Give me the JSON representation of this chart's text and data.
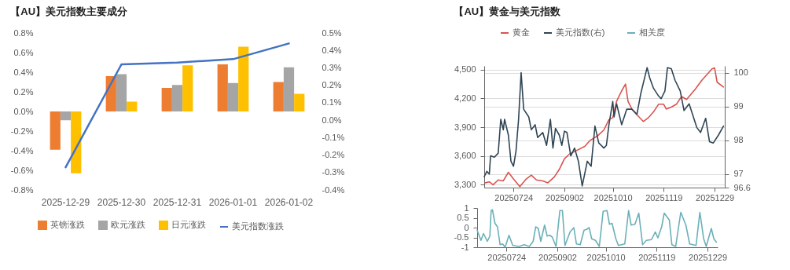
{
  "chart_data": [
    {
      "type": "bar",
      "title": "【AU】美元指数主要成分",
      "categories": [
        "2025-12-29",
        "2025-12-30",
        "2025-12-31",
        "2026-01-01",
        "2026-01-02"
      ],
      "series": [
        {
          "name": "英镑涨跌",
          "color": "#ed7d31",
          "values": [
            -0.39,
            0.36,
            0.24,
            0.48,
            0.3
          ]
        },
        {
          "name": "欧元涨跌",
          "color": "#a5a5a5",
          "values": [
            -0.09,
            0.38,
            0.27,
            0.29,
            0.45
          ]
        },
        {
          "name": "日元涨跌",
          "color": "#ffc000",
          "values": [
            -0.63,
            0.1,
            0.47,
            0.66,
            0.18
          ]
        },
        {
          "name": "美元指数涨跌",
          "type": "line",
          "axis": "y2",
          "color": "#4472c4",
          "values": [
            -0.27,
            0.32,
            0.33,
            0.35,
            0.44
          ]
        }
      ],
      "ylim": [
        -0.8,
        0.8
      ],
      "yticks": [
        {
          "value": -0.8,
          "label": "-0.8%"
        },
        {
          "value": -0.6,
          "label": "-0.6%"
        },
        {
          "value": -0.4,
          "label": "-0.4%"
        },
        {
          "value": -0.2,
          "label": "-0.2%"
        },
        {
          "value": 0,
          "label": "0.0%"
        },
        {
          "value": 0.2,
          "label": "0.2%"
        },
        {
          "value": 0.4,
          "label": "0.4%"
        },
        {
          "value": 0.6,
          "label": "0.6%"
        },
        {
          "value": 0.8,
          "label": "0.8%"
        }
      ],
      "y2lim": [
        -0.4,
        0.5
      ],
      "y2ticks": [
        {
          "value": -0.4,
          "label": "-0.4%"
        },
        {
          "value": -0.3,
          "label": "-0.3%"
        },
        {
          "value": -0.2,
          "label": "-0.2%"
        },
        {
          "value": -0.1,
          "label": "-0.1%"
        },
        {
          "value": 0,
          "label": "0.0%"
        },
        {
          "value": 0.1,
          "label": "0.1%"
        },
        {
          "value": 0.2,
          "label": "0.2%"
        },
        {
          "value": 0.3,
          "label": "0.3%"
        },
        {
          "value": 0.4,
          "label": "0.4%"
        },
        {
          "value": 0.5,
          "label": "0.5%"
        }
      ],
      "legend": "bottom"
    },
    {
      "type": "line",
      "title": "【AU】黄金与美元指数",
      "series": [
        {
          "name": "黄金",
          "color": "#d9534f",
          "axis": "y",
          "x": [
            "2025-07-02",
            "2025-07-05",
            "2025-07-08",
            "2025-07-12",
            "2025-07-16",
            "2025-07-20",
            "2025-07-24",
            "2025-07-29",
            "2025-08-03",
            "2025-08-07",
            "2025-08-11",
            "2025-08-16",
            "2025-08-20",
            "2025-08-25",
            "2025-08-29",
            "2025-09-02",
            "2025-09-06",
            "2025-09-12",
            "2025-09-18",
            "2025-09-22",
            "2025-09-28",
            "2025-10-03",
            "2025-10-07",
            "2025-10-10",
            "2025-10-13",
            "2025-10-17",
            "2025-10-20",
            "2025-10-22",
            "2025-10-25",
            "2025-10-29",
            "2025-11-03",
            "2025-11-07",
            "2025-11-11",
            "2025-11-15",
            "2025-11-19",
            "2025-11-21",
            "2025-11-25",
            "2025-11-29",
            "2025-12-03",
            "2025-12-07",
            "2025-12-14",
            "2025-12-19",
            "2025-12-23",
            "2025-12-27",
            "2025-12-29",
            "2025-12-31",
            "2026-01-05"
          ],
          "values": [
            3320,
            3330,
            3300,
            3350,
            3340,
            3430,
            3360,
            3280,
            3360,
            3400,
            3350,
            3340,
            3320,
            3380,
            3460,
            3570,
            3620,
            3660,
            3700,
            3760,
            3810,
            3870,
            3980,
            4000,
            4170,
            4280,
            4350,
            4170,
            4090,
            4030,
            3960,
            4000,
            4060,
            4140,
            4140,
            4090,
            4110,
            4140,
            4220,
            4190,
            4300,
            4390,
            4450,
            4510,
            4520,
            4370,
            4320
          ]
        },
        {
          "name": "美元指数(右)",
          "color": "#2f4554",
          "axis": "y2",
          "x": [
            "2025-07-01",
            "2025-07-03",
            "2025-07-05",
            "2025-07-06",
            "2025-07-09",
            "2025-07-12",
            "2025-07-14",
            "2025-07-16",
            "2025-07-17",
            "2025-07-20",
            "2025-07-22",
            "2025-07-24",
            "2025-07-26",
            "2025-07-28",
            "2025-07-30",
            "2025-08-01",
            "2025-08-05",
            "2025-08-07",
            "2025-08-10",
            "2025-08-12",
            "2025-08-16",
            "2025-08-19",
            "2025-08-22",
            "2025-08-24",
            "2025-08-26",
            "2025-08-29",
            "2025-08-31",
            "2025-09-02",
            "2025-09-04",
            "2025-09-07",
            "2025-09-10",
            "2025-09-13",
            "2025-09-16",
            "2025-09-20",
            "2025-09-23",
            "2025-09-26",
            "2025-09-29",
            "2025-10-03",
            "2025-10-05",
            "2025-10-07",
            "2025-10-10",
            "2025-10-11",
            "2025-10-13",
            "2025-10-17",
            "2025-10-21",
            "2025-10-25",
            "2025-10-29",
            "2025-11-01",
            "2025-11-06",
            "2025-11-08",
            "2025-11-11",
            "2025-11-15",
            "2025-11-17",
            "2025-11-20",
            "2025-11-22",
            "2025-11-25",
            "2025-11-28",
            "2025-12-02",
            "2025-12-05",
            "2025-12-09",
            "2025-12-15",
            "2025-12-18",
            "2025-12-22",
            "2025-12-25",
            "2025-12-28",
            "2026-01-01",
            "2026-01-05"
          ],
          "values": [
            96.92,
            97.08,
            97.0,
            97.54,
            97.5,
            97.62,
            98.62,
            98.31,
            98.62,
            98.15,
            97.38,
            97.23,
            97.69,
            98.62,
            100.0,
            98.92,
            98.69,
            98.31,
            98.46,
            98.08,
            98.23,
            97.85,
            98.62,
            97.77,
            98.35,
            98.15,
            97.85,
            98.27,
            98.23,
            97.54,
            97.77,
            97.38,
            96.65,
            97.38,
            97.23,
            98.42,
            97.92,
            97.77,
            97.85,
            98.46,
            99.15,
            98.69,
            99.08,
            98.46,
            98.92,
            98.92,
            98.77,
            99.38,
            100.15,
            99.85,
            99.54,
            99.31,
            99.23,
            99.46,
            100.15,
            100.12,
            99.77,
            99.46,
            98.88,
            99.08,
            98.38,
            98.23,
            98.65,
            97.96,
            97.92,
            98.15,
            98.42
          ]
        }
      ],
      "xlim": [
        "2025-07-01",
        "2026-01-06"
      ],
      "xticks": [
        {
          "value": "2025-07-24",
          "label": "20250724"
        },
        {
          "value": "2025-09-02",
          "label": "20250902"
        },
        {
          "value": "2025-10-10",
          "label": "20251010"
        },
        {
          "value": "2025-11-19",
          "label": "20251119"
        },
        {
          "value": "2025-12-29",
          "label": "20251229"
        }
      ],
      "ylim": [
        3270,
        4540
      ],
      "yticks": [
        {
          "value": 3300,
          "label": "3,300"
        },
        {
          "value": 3600,
          "label": "3,600"
        },
        {
          "value": 3900,
          "label": "3,900"
        },
        {
          "value": 4200,
          "label": "4,200"
        },
        {
          "value": 4500,
          "label": "4,500"
        }
      ],
      "y2lim": [
        96.6,
        100.2
      ],
      "y2ticks": [
        96.6,
        97,
        98,
        99,
        100
      ],
      "grid": "y",
      "legend": "top"
    },
    {
      "type": "line",
      "series": [
        {
          "name": "相关度",
          "color": "#6ab0b8",
          "x": [
            "2025-07-01",
            "2025-07-04",
            "2025-07-06",
            "2025-07-09",
            "2025-07-11",
            "2025-07-12",
            "2025-07-13",
            "2025-07-15",
            "2025-07-17",
            "2025-07-19",
            "2025-07-21",
            "2025-07-23",
            "2025-07-26",
            "2025-07-29",
            "2025-08-03",
            "2025-08-07",
            "2025-08-11",
            "2025-08-14",
            "2025-08-16",
            "2025-08-18",
            "2025-08-20",
            "2025-08-23",
            "2025-08-25",
            "2025-08-27",
            "2025-08-29",
            "2025-09-01",
            "2025-09-04",
            "2025-09-06",
            "2025-09-08",
            "2025-09-12",
            "2025-09-15",
            "2025-09-17",
            "2025-09-20",
            "2025-09-23",
            "2025-09-25",
            "2025-09-27",
            "2025-09-29",
            "2025-10-02",
            "2025-10-05",
            "2025-10-08",
            "2025-10-11",
            "2025-10-13",
            "2025-10-15",
            "2025-10-18",
            "2025-10-20",
            "2025-10-25",
            "2025-10-28",
            "2025-10-30",
            "2025-11-02",
            "2025-11-05",
            "2025-11-08",
            "2025-11-11",
            "2025-11-15",
            "2025-11-18",
            "2025-11-20",
            "2025-11-23",
            "2025-11-25",
            "2025-11-29",
            "2025-12-01",
            "2025-12-04",
            "2025-12-08",
            "2025-12-12",
            "2025-12-15",
            "2025-12-20",
            "2025-12-23",
            "2025-12-26",
            "2025-12-28",
            "2026-01-01",
            "2026-01-03",
            "2026-01-05"
          ],
          "values": [
            -0.13,
            -0.65,
            -0.3,
            -0.7,
            -0.43,
            0.87,
            0.91,
            0.22,
            0.04,
            -0.87,
            -0.83,
            -1.0,
            -0.39,
            -0.91,
            -0.96,
            -0.87,
            -0.96,
            -0.7,
            0.04,
            -0.04,
            -0.7,
            0.13,
            -0.43,
            -0.39,
            -0.48,
            -0.96,
            0.87,
            0.87,
            -0.91,
            -0.22,
            0.0,
            -0.83,
            -0.87,
            -0.13,
            -0.09,
            0.0,
            -0.57,
            -0.65,
            -0.96,
            0.83,
            0.87,
            0.17,
            0.22,
            -0.57,
            -0.91,
            -0.83,
            0.87,
            0.13,
            0.17,
            0.74,
            -0.87,
            -0.65,
            -0.61,
            -0.22,
            -0.52,
            0.04,
            0.74,
            0.39,
            -0.87,
            -0.96,
            0.78,
            0.13,
            -0.83,
            -0.91,
            0.78,
            -0.57,
            -0.96,
            -0.04,
            -0.57,
            -0.74
          ]
        }
      ],
      "xlim": [
        "2025-07-01",
        "2026-01-06"
      ],
      "xticks": [
        {
          "value": "2025-07-24",
          "label": "20250724"
        },
        {
          "value": "2025-09-02",
          "label": "20250902"
        },
        {
          "value": "2025-10-10",
          "label": "20251010"
        },
        {
          "value": "2025-11-19",
          "label": "20251119"
        },
        {
          "value": "2025-12-29",
          "label": "20251229"
        }
      ],
      "ylim": [
        -1,
        1
      ],
      "yticks": [
        -1,
        -0.5,
        0,
        0.5,
        1
      ],
      "legend": "top"
    }
  ]
}
